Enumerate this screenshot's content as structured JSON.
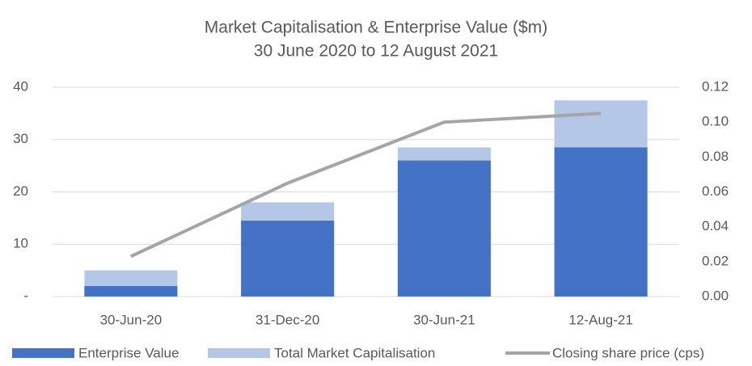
{
  "chart_data": {
    "type": "bar",
    "title": "Market Capitalisation & Enterprise Value ($m)",
    "subtitle": "30 June 2020 to 12 August 2021",
    "categories": [
      "30-Jun-20",
      "31-Dec-20",
      "30-Jun-21",
      "12-Aug-21"
    ],
    "series": [
      {
        "name": "Enterprise Value",
        "color": "#4472c4",
        "values": [
          2,
          14.5,
          26,
          28.5
        ]
      },
      {
        "name": "Total Market Capitalisation",
        "color": "#b4c7e7",
        "values": [
          5,
          18,
          28.5,
          37.5
        ]
      },
      {
        "name": "Closing share price (cps)",
        "color": "#a5a5a5",
        "type": "line",
        "axis": "y2",
        "values": [
          0.023,
          0.065,
          0.1,
          0.105
        ]
      }
    ],
    "ylim": [
      0,
      40
    ],
    "yticks": [
      {
        "value": 0,
        "label": "-"
      },
      10,
      20,
      30,
      40
    ],
    "y2lim": [
      0,
      0.12
    ],
    "y2ticks": [
      {
        "value": 0,
        "label": "0.00"
      },
      {
        "value": 0.02,
        "label": "0.02"
      },
      {
        "value": 0.04,
        "label": "0.04"
      },
      {
        "value": 0.06,
        "label": "0.06"
      },
      {
        "value": 0.08,
        "label": "0.08"
      },
      {
        "value": 0.1,
        "label": "0.10"
      },
      {
        "value": 0.12,
        "label": "0.12"
      }
    ],
    "grid": true,
    "legend": "bottom"
  }
}
